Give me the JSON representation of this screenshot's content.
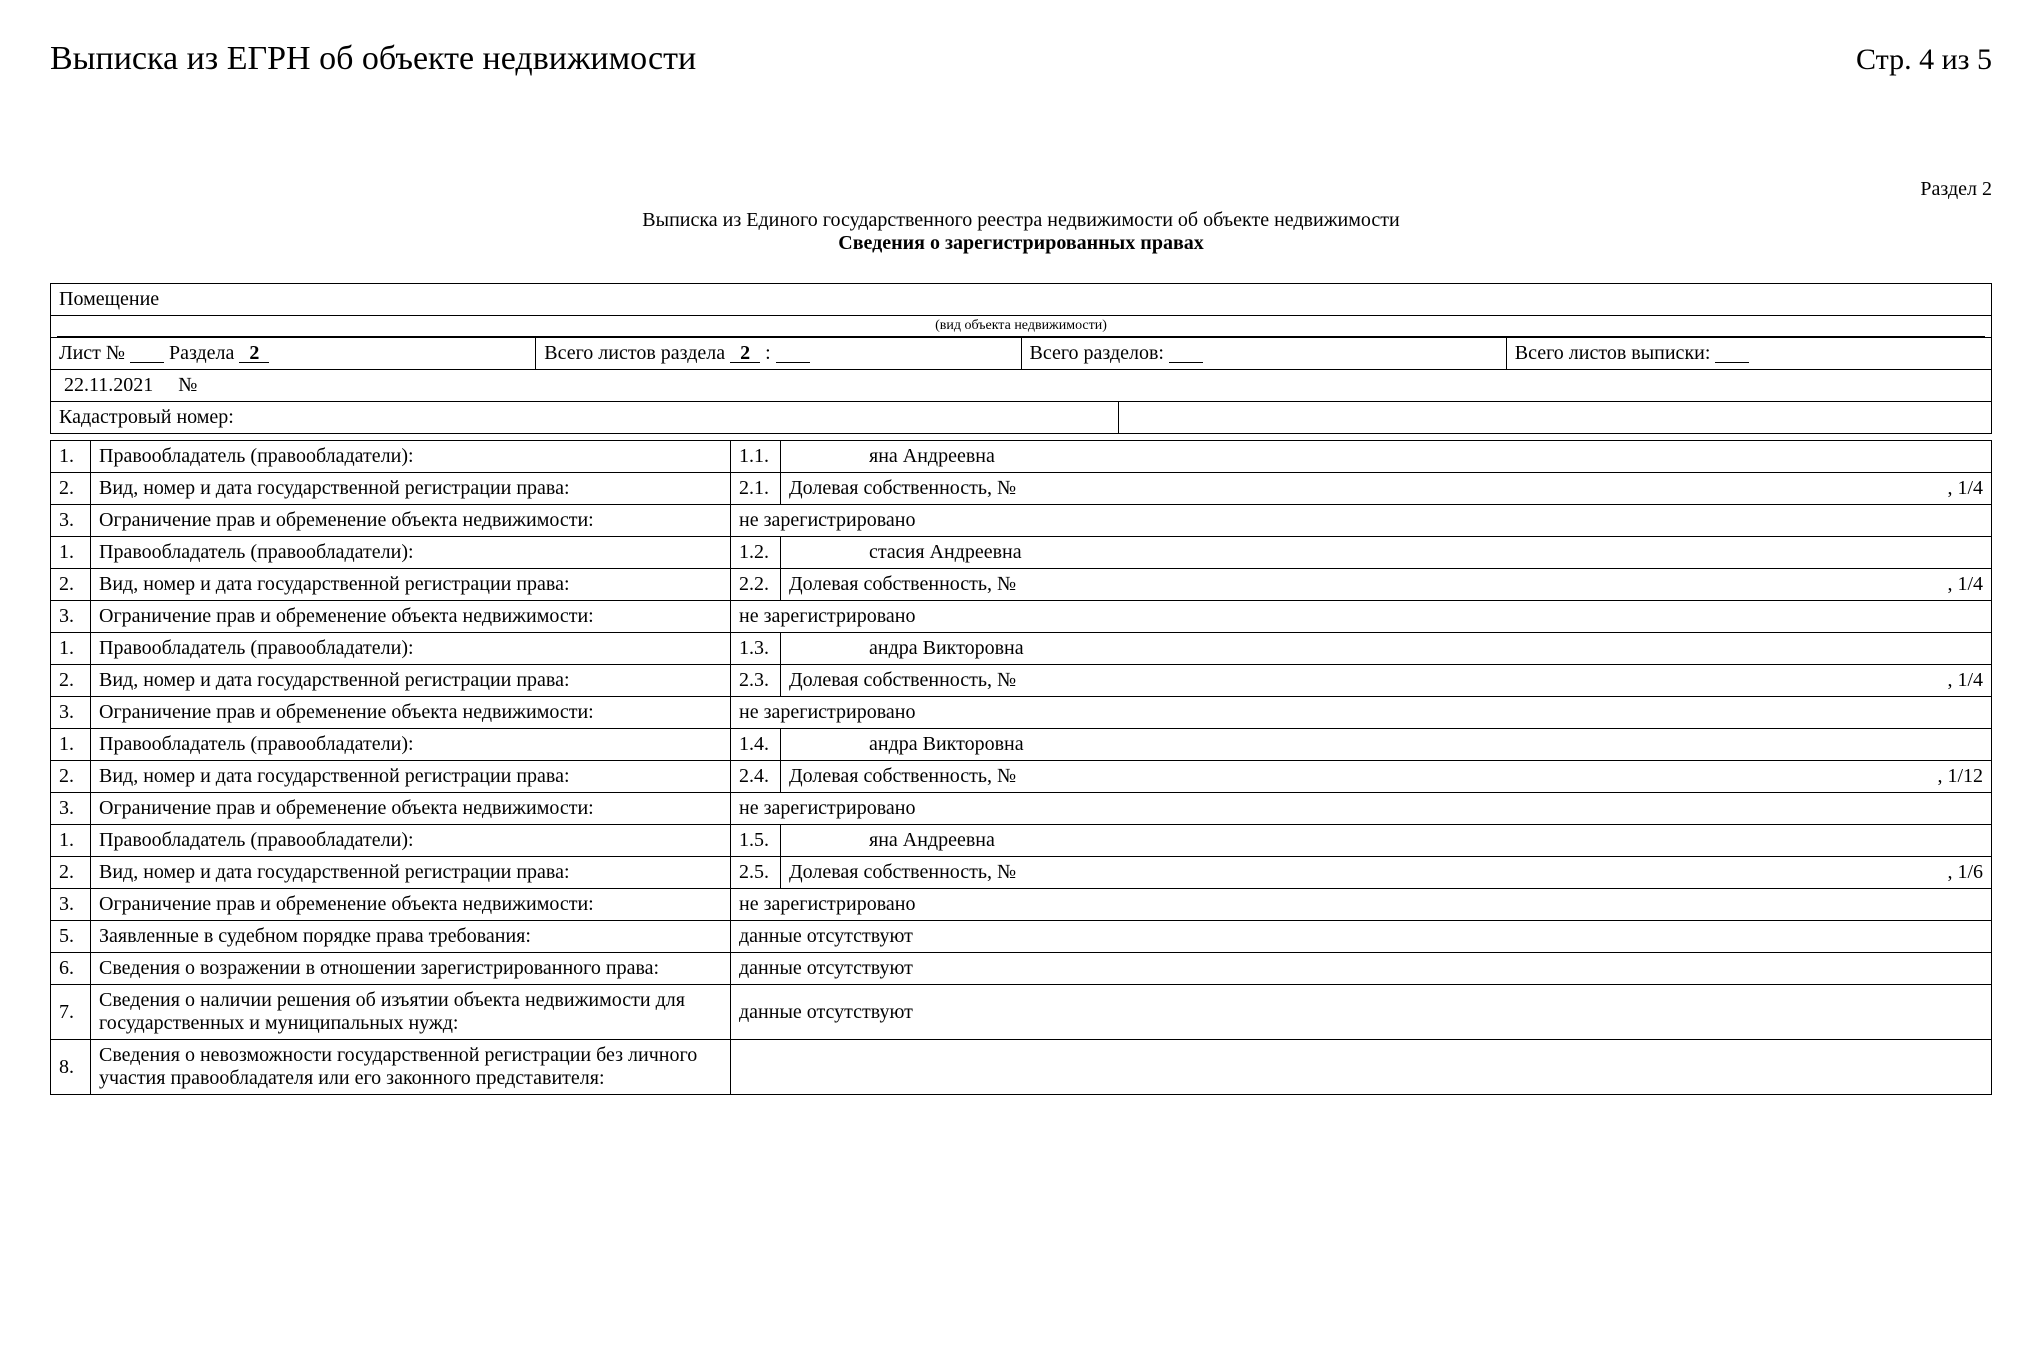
{
  "header": {
    "title": "Выписка из ЕГРН об объекте недвижимости",
    "page": "Стр. 4 из 5",
    "section": "Раздел 2",
    "subtitle1": "Выписка из Единого государственного реестра недвижимости об объекте недвижимости",
    "subtitle2": "Сведения о зарегистрированных правах"
  },
  "top": {
    "room": "Помещение",
    "object_type_note": "(вид объекта недвижимости)",
    "sheet_label": "Лист №",
    "razdel_label": "Раздела",
    "razdel_val": "2",
    "total_sheets_razdel_label": "Всего листов раздела",
    "total_sheets_razdel_val": "2",
    "total_razdel_label": "Всего разделов:",
    "total_sheets_label": "Всего листов выписки:",
    "date": "22.11.2021",
    "num_sign": "№",
    "cad_label": "Кадастровый номер:"
  },
  "labels": {
    "owner": "Правообладатель (правообладатели):",
    "reg": "Вид, номер и дата государственной регистрации права:",
    "restrict": "Ограничение прав и обременение объекта недвижимости:",
    "not_registered": "не зарегистрировано",
    "share_prefix": "Долевая собственность, №",
    "row5": "Заявленные в судебном порядке права требования:",
    "row6": "Сведения о возражении в отношении зарегистрированного права:",
    "row7": "Сведения о наличии решения об изъятии объекта недвижимости для государственных и муниципальных нужд:",
    "row8": "Сведения о невозможности государственной регистрации без личного участия правообладателя или его законного представителя:",
    "no_data": "данные отсутствуют"
  },
  "owners": [
    {
      "idx": "1.1.",
      "name_suffix": "яна Андреевна",
      "reg_idx": "2.1.",
      "share": ", 1/4"
    },
    {
      "idx": "1.2.",
      "name_suffix": "стасия Андреевна",
      "reg_idx": "2.2.",
      "share": ", 1/4"
    },
    {
      "idx": "1.3.",
      "name_suffix": "андра Викторовна",
      "reg_idx": "2.3.",
      "share": ", 1/4"
    },
    {
      "idx": "1.4.",
      "name_suffix": "андра Викторовна",
      "reg_idx": "2.4.",
      "share": ", 1/12"
    },
    {
      "idx": "1.5.",
      "name_suffix": "яна Андреевна",
      "reg_idx": "2.5.",
      "share": ", 1/6"
    }
  ]
}
